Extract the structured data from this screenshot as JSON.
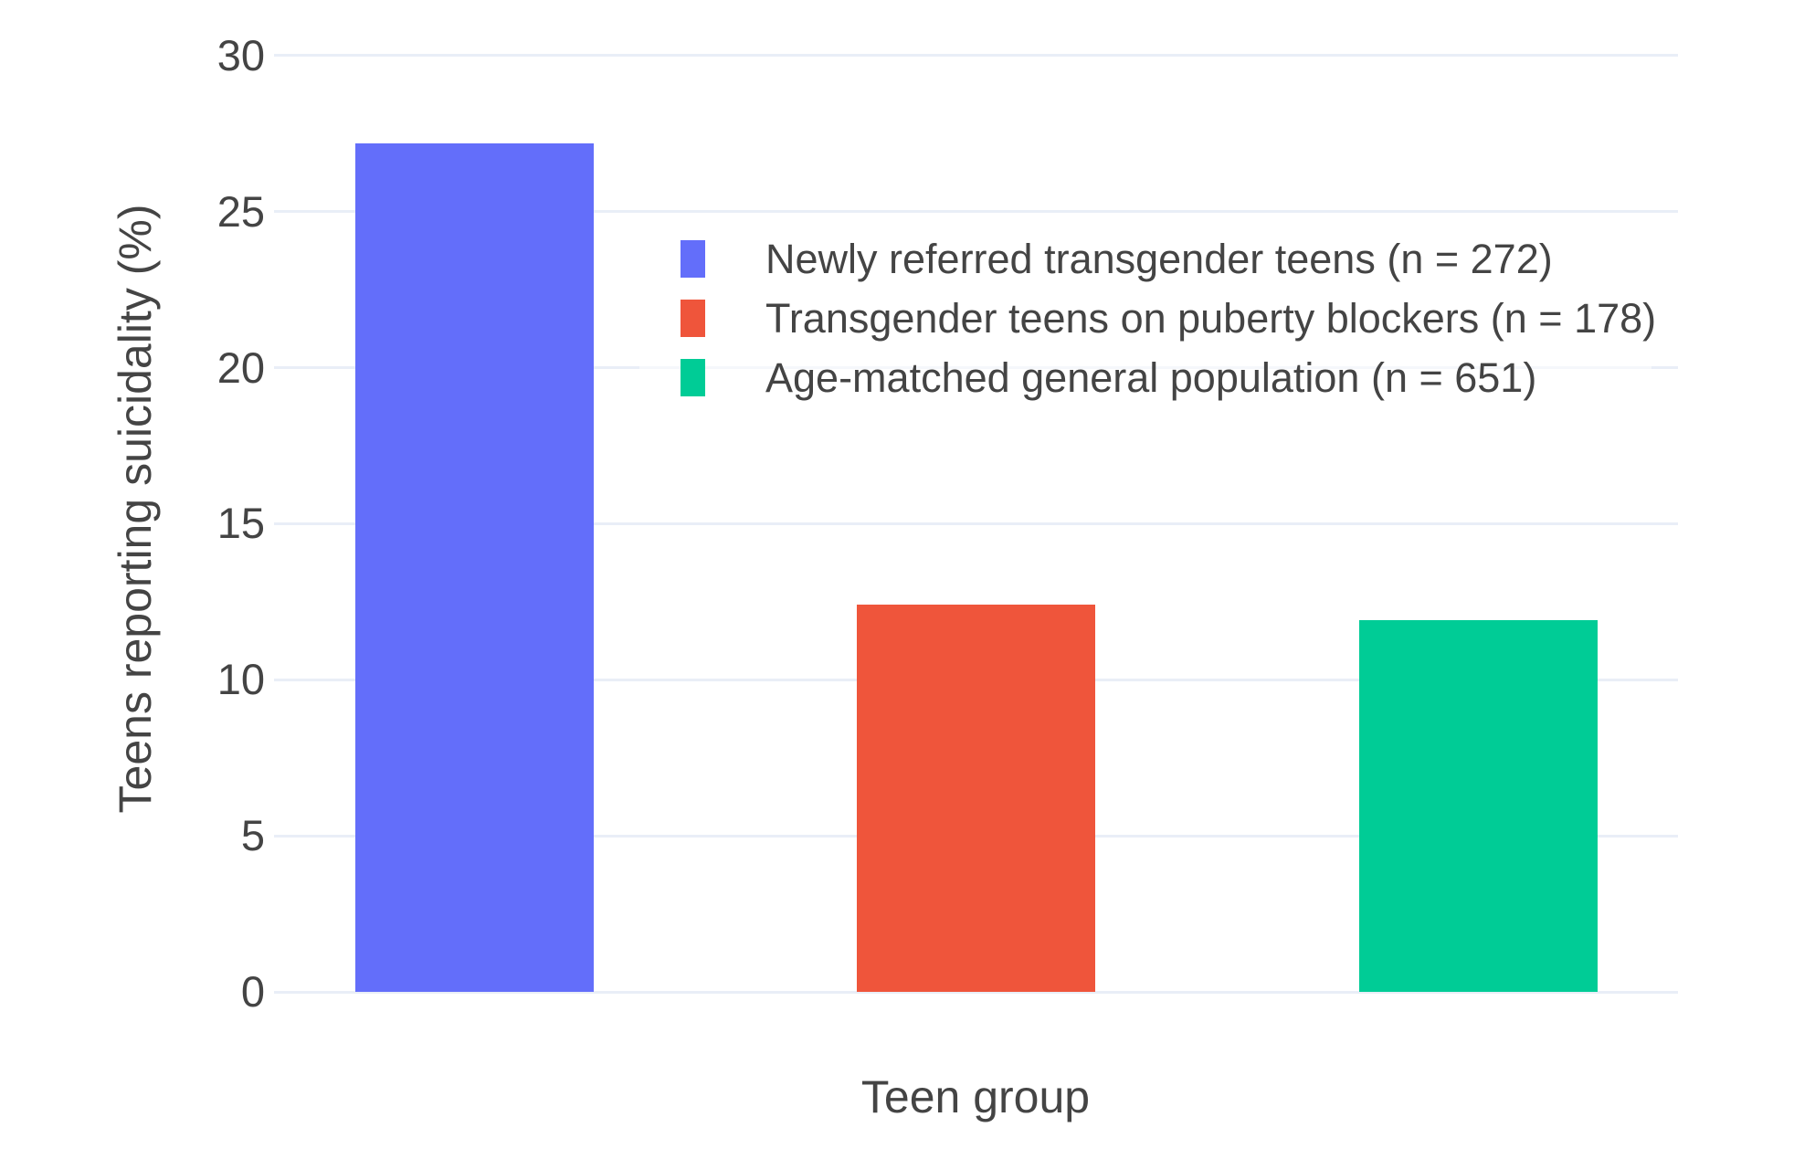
{
  "chart_data": {
    "type": "bar",
    "title": "",
    "xlabel": "Teen group",
    "ylabel": "Teens reporting suicidality (%)",
    "bars": [
      {
        "label": "Newly referred transgender teens (n = 272)",
        "value": 27.2,
        "color": "#636EFA"
      },
      {
        "label": "Transgender teens on puberty blockers (n = 178)",
        "value": 12.4,
        "color": "#EF553B"
      },
      {
        "label": "Age-matched general population (n = 651)",
        "value": 11.9,
        "color": "#00CC96"
      }
    ],
    "yticks": [
      0,
      5,
      10,
      15,
      20,
      25,
      30
    ],
    "ylim": [
      0,
      30
    ],
    "grid": true,
    "legend_position": "inside-top-right",
    "colors": {
      "background": "#FFFFFF",
      "gridline": "#E9EEF7",
      "text": "#444444"
    }
  }
}
